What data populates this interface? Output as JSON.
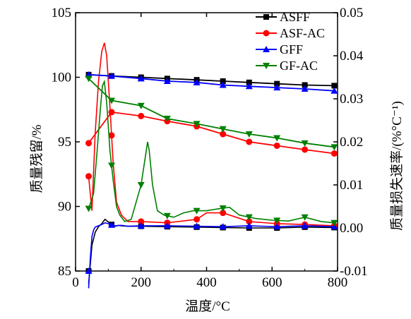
{
  "chart_data": {
    "type": "line",
    "xlabel": "温度/°C",
    "ylabel_left": "质量残留/%",
    "ylabel_right": "质量损失速率/(%°C⁻¹)",
    "x_range": [
      0,
      800
    ],
    "y_left_range": [
      85,
      105
    ],
    "y_right_range": [
      -0.01,
      0.05
    ],
    "x_ticks": [
      "0",
      "200",
      "400",
      "600",
      "800"
    ],
    "y_left_ticks": [
      "85",
      "90",
      "95",
      "100",
      "105"
    ],
    "y_right_ticks": [
      "-0.01",
      "0.00",
      "0.01",
      "0.02",
      "0.03",
      "0.04",
      "0.05"
    ],
    "legend_position": "top-right",
    "grid": false,
    "series": [
      {
        "name": "ASFF",
        "color": "#000000",
        "marker": "square",
        "residue_x": [
          40,
          110,
          200,
          280,
          370,
          450,
          530,
          615,
          700,
          790
        ],
        "residue_y": [
          100.2,
          100.1,
          100.0,
          99.9,
          99.8,
          99.7,
          99.6,
          99.5,
          99.4,
          99.35
        ],
        "rate_x": [
          40,
          50,
          60,
          70,
          80,
          90,
          100,
          110,
          120,
          130,
          140,
          160,
          200,
          280,
          370,
          450,
          530,
          615,
          700,
          790
        ],
        "rate_y": [
          -0.013,
          -0.004,
          -0.001,
          0.0003,
          0.001,
          0.002,
          0.0014,
          0.0008,
          0.0004,
          0.0006,
          0.0005,
          0.0004,
          0.0004,
          0.0003,
          0.0002,
          0.0001,
          0.0,
          0.0,
          0.0002,
          0.0001
        ]
      },
      {
        "name": "ASF-AC",
        "color": "#ff0000",
        "marker": "circle",
        "residue_x": [
          40,
          110,
          200,
          280,
          370,
          450,
          530,
          615,
          700,
          790
        ],
        "residue_y": [
          94.9,
          97.3,
          97.0,
          96.6,
          96.2,
          95.6,
          95.0,
          94.7,
          94.4,
          94.1
        ],
        "rate_x": [
          40,
          50,
          60,
          70,
          80,
          88,
          95,
          105,
          115,
          125,
          140,
          160,
          200,
          280,
          370,
          400,
          450,
          530,
          615,
          700,
          790
        ],
        "rate_y": [
          0.012,
          0.004,
          0.022,
          0.034,
          0.041,
          0.043,
          0.04,
          0.028,
          0.015,
          0.006,
          0.003,
          0.0015,
          0.0015,
          0.0012,
          0.002,
          0.0035,
          0.0035,
          0.0015,
          0.001,
          0.0008,
          0.0005
        ]
      },
      {
        "name": "GFF",
        "color": "#0000ff",
        "marker": "triangle-up",
        "residue_x": [
          40,
          110,
          200,
          280,
          370,
          450,
          530,
          615,
          700,
          790
        ],
        "residue_y": [
          100.2,
          100.1,
          99.9,
          99.7,
          99.6,
          99.4,
          99.3,
          99.2,
          99.1,
          98.95
        ],
        "rate_x": [
          40,
          45,
          50,
          55,
          60,
          70,
          80,
          90,
          100,
          110,
          120,
          140,
          160,
          200,
          280,
          370,
          450,
          530,
          615,
          700,
          790
        ],
        "rate_y": [
          -0.014,
          -0.007,
          -0.002,
          -0.0005,
          0.0002,
          0.0005,
          0.0008,
          0.0012,
          0.001,
          0.0007,
          0.0005,
          0.0006,
          0.0004,
          0.0005,
          0.0005,
          0.0004,
          0.0003,
          0.0005,
          0.0003,
          0.0005,
          0.0003
        ]
      },
      {
        "name": "GF-AC",
        "color": "#008000",
        "marker": "triangle-down",
        "residue_x": [
          40,
          110,
          200,
          280,
          370,
          450,
          530,
          615,
          700,
          790
        ],
        "residue_y": [
          99.9,
          98.2,
          97.8,
          96.8,
          96.4,
          96.0,
          95.6,
          95.3,
          94.9,
          94.6
        ],
        "rate_x": [
          40,
          55,
          65,
          75,
          82,
          88,
          95,
          105,
          115,
          125,
          135,
          150,
          170,
          185,
          200,
          210,
          220,
          225,
          235,
          250,
          270,
          300,
          330,
          360,
          400,
          440,
          470,
          500,
          550,
          600,
          650,
          700,
          750,
          790
        ],
        "rate_y": [
          0.0045,
          0.008,
          0.017,
          0.027,
          0.033,
          0.034,
          0.029,
          0.018,
          0.011,
          0.005,
          0.003,
          0.0015,
          0.002,
          0.006,
          0.01,
          0.015,
          0.02,
          0.018,
          0.01,
          0.004,
          0.003,
          0.0025,
          0.0035,
          0.004,
          0.004,
          0.0045,
          0.0048,
          0.003,
          0.0022,
          0.0018,
          0.0016,
          0.0025,
          0.0015,
          0.0012
        ]
      }
    ]
  }
}
